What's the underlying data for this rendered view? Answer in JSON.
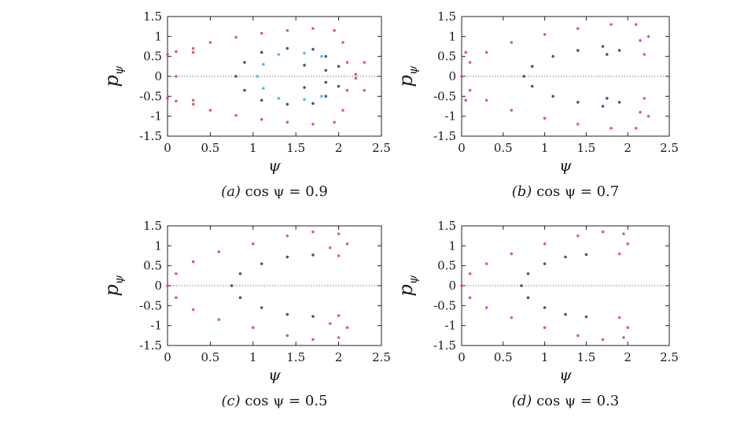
{
  "figure": {
    "panels": [
      {
        "caption_tag": "(a)",
        "caption_eq": "cos ψ = 0.9",
        "xlabel": "ψ",
        "ylabel_main": "p",
        "ylabel_sub": "ψ",
        "xticks": [
          "0",
          "0.5",
          "1",
          "1.5",
          "2",
          "2.5"
        ],
        "yticks": [
          "1.5",
          "1",
          "0.5",
          "0",
          "-0.5",
          "-1",
          "-1.5"
        ]
      },
      {
        "caption_tag": "(b)",
        "caption_eq": "cos ψ = 0.7",
        "xlabel": "ψ",
        "ylabel_main": "p",
        "ylabel_sub": "ψ",
        "xticks": [
          "0",
          "0.5",
          "1",
          "1.5",
          "2",
          "2.5"
        ],
        "yticks": [
          "1.5",
          "1",
          "0.5",
          "0",
          "-0.5",
          "-1",
          "-1.5"
        ]
      },
      {
        "caption_tag": "(c)",
        "caption_eq": "cos ψ = 0.5",
        "xlabel": "ψ",
        "ylabel_main": "p",
        "ylabel_sub": "ψ",
        "xticks": [
          "0",
          "0.5",
          "1",
          "1.5",
          "2",
          "2.5"
        ],
        "yticks": [
          "1.5",
          "1",
          "0.5",
          "0",
          "-0.5",
          "-1",
          "-1.5"
        ]
      },
      {
        "caption_tag": "(d)",
        "caption_eq": "cos ψ = 0.3",
        "xlabel": "ψ",
        "ylabel_main": "p",
        "ylabel_sub": "ψ",
        "xticks": [
          "0",
          "0.5",
          "1",
          "1.5",
          "2",
          "2.5"
        ],
        "yticks": [
          "1.5",
          "1",
          "0.5",
          "0",
          "-0.5",
          "-1",
          "-1.5"
        ]
      }
    ]
  },
  "colors": {
    "outer_orbit": "#d24848",
    "inner_orbit": "#2c3575",
    "core_orbit": "#3ab0d8",
    "zero_line": "#555555",
    "axes": "#222222"
  },
  "chart_data": [
    {
      "type": "scatter",
      "panel": "a",
      "xlim": [
        0,
        2.5
      ],
      "ylim": [
        -1.5,
        1.5
      ],
      "xlabel": "ψ",
      "ylabel": "pψ",
      "reference_lines": [
        {
          "orientation": "horizontal",
          "y": 0,
          "style": "dotted"
        }
      ],
      "series": [
        {
          "color": "#d24848",
          "points": [
            [
              0.0,
              0.55
            ],
            [
              0.1,
              0.62
            ],
            [
              0.3,
              0.7
            ],
            [
              0.5,
              0.85
            ],
            [
              0.8,
              0.98
            ],
            [
              1.1,
              1.08
            ],
            [
              1.4,
              1.15
            ],
            [
              1.7,
              1.2
            ],
            [
              1.95,
              1.15
            ],
            [
              2.05,
              0.85
            ],
            [
              2.1,
              0.35
            ],
            [
              2.2,
              0.05
            ],
            [
              2.3,
              0.35
            ],
            [
              2.3,
              -0.35
            ],
            [
              2.2,
              -0.05
            ],
            [
              2.1,
              -0.35
            ],
            [
              2.05,
              -0.85
            ],
            [
              1.95,
              -1.15
            ],
            [
              1.7,
              -1.2
            ],
            [
              1.4,
              -1.15
            ],
            [
              1.1,
              -1.08
            ],
            [
              0.8,
              -0.98
            ],
            [
              0.5,
              -0.85
            ],
            [
              0.3,
              -0.7
            ],
            [
              0.1,
              -0.62
            ],
            [
              0.0,
              -0.55
            ],
            [
              0.1,
              0.0
            ],
            [
              0.3,
              0.6
            ],
            [
              0.3,
              -0.6
            ]
          ]
        },
        {
          "color": "#2c3575",
          "points": [
            [
              0.8,
              0.0
            ],
            [
              0.9,
              0.35
            ],
            [
              1.1,
              0.6
            ],
            [
              1.4,
              0.7
            ],
            [
              1.7,
              0.68
            ],
            [
              1.85,
              0.5
            ],
            [
              2.0,
              0.25
            ],
            [
              1.85,
              0.15
            ],
            [
              1.6,
              0.28
            ],
            [
              1.6,
              -0.28
            ],
            [
              1.85,
              -0.15
            ],
            [
              2.0,
              -0.25
            ],
            [
              1.85,
              -0.5
            ],
            [
              1.7,
              -0.68
            ],
            [
              1.4,
              -0.7
            ],
            [
              1.1,
              -0.6
            ],
            [
              0.9,
              -0.35
            ]
          ]
        },
        {
          "color": "#3ab0d8",
          "points": [
            [
              1.05,
              0.0
            ],
            [
              1.12,
              0.3
            ],
            [
              1.3,
              0.55
            ],
            [
              1.6,
              0.58
            ],
            [
              1.8,
              0.5
            ],
            [
              1.8,
              -0.5
            ],
            [
              1.6,
              -0.58
            ],
            [
              1.3,
              -0.55
            ],
            [
              1.12,
              -0.3
            ]
          ]
        }
      ]
    },
    {
      "type": "scatter",
      "panel": "b",
      "xlim": [
        0,
        2.5
      ],
      "ylim": [
        -1.5,
        1.5
      ],
      "xlabel": "ψ",
      "ylabel": "pψ",
      "reference_lines": [
        {
          "orientation": "horizontal",
          "y": 0,
          "style": "dotted"
        }
      ],
      "series": [
        {
          "color": "#d24848",
          "points": [
            [
              0.0,
              0.0
            ],
            [
              0.1,
              0.35
            ],
            [
              0.3,
              0.6
            ],
            [
              0.6,
              0.85
            ],
            [
              1.0,
              1.05
            ],
            [
              1.4,
              1.2
            ],
            [
              1.8,
              1.3
            ],
            [
              2.1,
              1.3
            ],
            [
              2.25,
              1.0
            ],
            [
              2.2,
              0.55
            ],
            [
              2.15,
              0.9
            ],
            [
              2.15,
              -0.9
            ],
            [
              2.2,
              -0.55
            ],
            [
              2.25,
              -1.0
            ],
            [
              2.1,
              -1.3
            ],
            [
              1.8,
              -1.3
            ],
            [
              1.4,
              -1.2
            ],
            [
              1.0,
              -1.05
            ],
            [
              0.6,
              -0.85
            ],
            [
              0.3,
              -0.6
            ],
            [
              0.1,
              -0.35
            ],
            [
              0.05,
              0.6
            ],
            [
              0.05,
              -0.6
            ]
          ]
        },
        {
          "color": "#2c3575",
          "points": [
            [
              0.75,
              0.0
            ],
            [
              0.85,
              0.25
            ],
            [
              1.1,
              0.5
            ],
            [
              1.4,
              0.65
            ],
            [
              1.7,
              0.75
            ],
            [
              1.9,
              0.65
            ],
            [
              1.75,
              0.55
            ],
            [
              1.75,
              -0.55
            ],
            [
              1.9,
              -0.65
            ],
            [
              1.7,
              -0.75
            ],
            [
              1.4,
              -0.65
            ],
            [
              1.1,
              -0.5
            ],
            [
              0.85,
              -0.25
            ]
          ]
        }
      ]
    },
    {
      "type": "scatter",
      "panel": "c",
      "xlim": [
        0,
        2.5
      ],
      "ylim": [
        -1.5,
        1.5
      ],
      "xlabel": "ψ",
      "ylabel": "pψ",
      "reference_lines": [
        {
          "orientation": "horizontal",
          "y": 0,
          "style": "dotted"
        }
      ],
      "series": [
        {
          "color": "#d24848",
          "points": [
            [
              0.0,
              0.0
            ],
            [
              0.1,
              0.3
            ],
            [
              0.3,
              0.6
            ],
            [
              0.6,
              0.85
            ],
            [
              1.0,
              1.05
            ],
            [
              1.4,
              1.25
            ],
            [
              1.7,
              1.35
            ],
            [
              2.0,
              1.3
            ],
            [
              2.1,
              1.05
            ],
            [
              2.0,
              0.75
            ],
            [
              1.9,
              0.95
            ],
            [
              1.9,
              -0.95
            ],
            [
              2.0,
              -0.75
            ],
            [
              2.1,
              -1.05
            ],
            [
              2.0,
              -1.3
            ],
            [
              1.7,
              -1.35
            ],
            [
              1.4,
              -1.25
            ],
            [
              1.0,
              -1.05
            ],
            [
              0.6,
              -0.85
            ],
            [
              0.3,
              -0.6
            ],
            [
              0.1,
              -0.3
            ]
          ]
        },
        {
          "color": "#2c3575",
          "points": [
            [
              0.75,
              0.0
            ],
            [
              0.85,
              0.3
            ],
            [
              1.1,
              0.55
            ],
            [
              1.4,
              0.72
            ],
            [
              1.7,
              0.77
            ],
            [
              1.7,
              -0.77
            ],
            [
              1.4,
              -0.72
            ],
            [
              1.1,
              -0.55
            ],
            [
              0.85,
              -0.3
            ]
          ]
        }
      ]
    },
    {
      "type": "scatter",
      "panel": "d",
      "xlim": [
        0,
        2.5
      ],
      "ylim": [
        -1.5,
        1.5
      ],
      "xlabel": "ψ",
      "ylabel": "pψ",
      "reference_lines": [
        {
          "orientation": "horizontal",
          "y": 0,
          "style": "dotted"
        }
      ],
      "series": [
        {
          "color": "#d24848",
          "points": [
            [
              0.0,
              0.0
            ],
            [
              0.1,
              0.3
            ],
            [
              0.3,
              0.55
            ],
            [
              0.6,
              0.8
            ],
            [
              1.0,
              1.05
            ],
            [
              1.4,
              1.25
            ],
            [
              1.7,
              1.35
            ],
            [
              1.95,
              1.3
            ],
            [
              2.0,
              1.05
            ],
            [
              1.9,
              0.8
            ],
            [
              1.9,
              -0.8
            ],
            [
              2.0,
              -1.05
            ],
            [
              1.95,
              -1.3
            ],
            [
              1.7,
              -1.35
            ],
            [
              1.4,
              -1.25
            ],
            [
              1.0,
              -1.05
            ],
            [
              0.6,
              -0.8
            ],
            [
              0.3,
              -0.55
            ],
            [
              0.1,
              -0.3
            ]
          ]
        },
        {
          "color": "#2c3575",
          "points": [
            [
              0.72,
              0.0
            ],
            [
              0.8,
              0.3
            ],
            [
              1.0,
              0.55
            ],
            [
              1.25,
              0.72
            ],
            [
              1.5,
              0.78
            ],
            [
              1.5,
              -0.78
            ],
            [
              1.25,
              -0.72
            ],
            [
              1.0,
              -0.55
            ],
            [
              0.8,
              -0.3
            ]
          ]
        }
      ]
    }
  ]
}
